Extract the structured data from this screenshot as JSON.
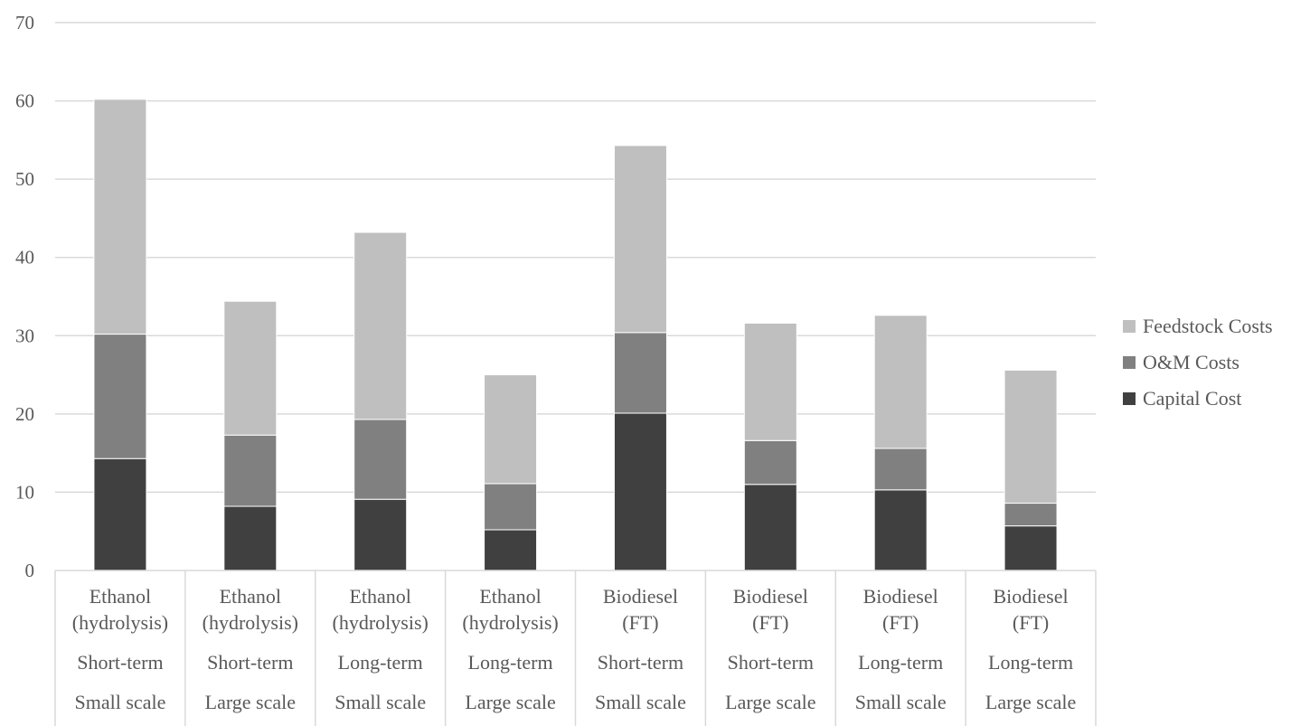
{
  "chart_data": {
    "type": "bar",
    "stacked": true,
    "categories": [
      [
        "Ethanol",
        "(hydrolysis)",
        "Short-term",
        "Small scale"
      ],
      [
        "Ethanol",
        "(hydrolysis)",
        "Short-term",
        "Large scale"
      ],
      [
        "Ethanol",
        "(hydrolysis)",
        "Long-term",
        "Small scale"
      ],
      [
        "Ethanol",
        "(hydrolysis)",
        "Long-term",
        "Large scale"
      ],
      [
        "Biodiesel",
        "(FT)",
        "Short-term",
        "Small scale"
      ],
      [
        "Biodiesel",
        "(FT)",
        "Short-term",
        "Large scale"
      ],
      [
        "Biodiesel",
        "(FT)",
        "Long-term",
        "Small scale"
      ],
      [
        "Biodiesel",
        "(FT)",
        "Long-term",
        "Large scale"
      ]
    ],
    "series": [
      {
        "name": "Capital Cost",
        "color": "#404040",
        "values": [
          14.3,
          8.2,
          9.1,
          5.2,
          20.1,
          11.0,
          10.3,
          5.7
        ]
      },
      {
        "name": "O&M Costs",
        "color": "#808080",
        "values": [
          15.9,
          9.1,
          10.2,
          5.9,
          10.3,
          5.6,
          5.3,
          2.9
        ]
      },
      {
        "name": "Feedstock Costs",
        "color": "#bfbfbf",
        "values": [
          30.0,
          17.1,
          23.9,
          13.9,
          23.9,
          15.0,
          17.0,
          17.0
        ]
      }
    ],
    "ylim": [
      0,
      70
    ],
    "yticks": [
      0,
      10,
      20,
      30,
      40,
      50,
      60,
      70
    ],
    "grid": true,
    "legend_position": "right",
    "legend_order": [
      "Feedstock Costs",
      "O&M Costs",
      "Capital Cost"
    ],
    "title": "",
    "xlabel": "",
    "ylabel": ""
  }
}
